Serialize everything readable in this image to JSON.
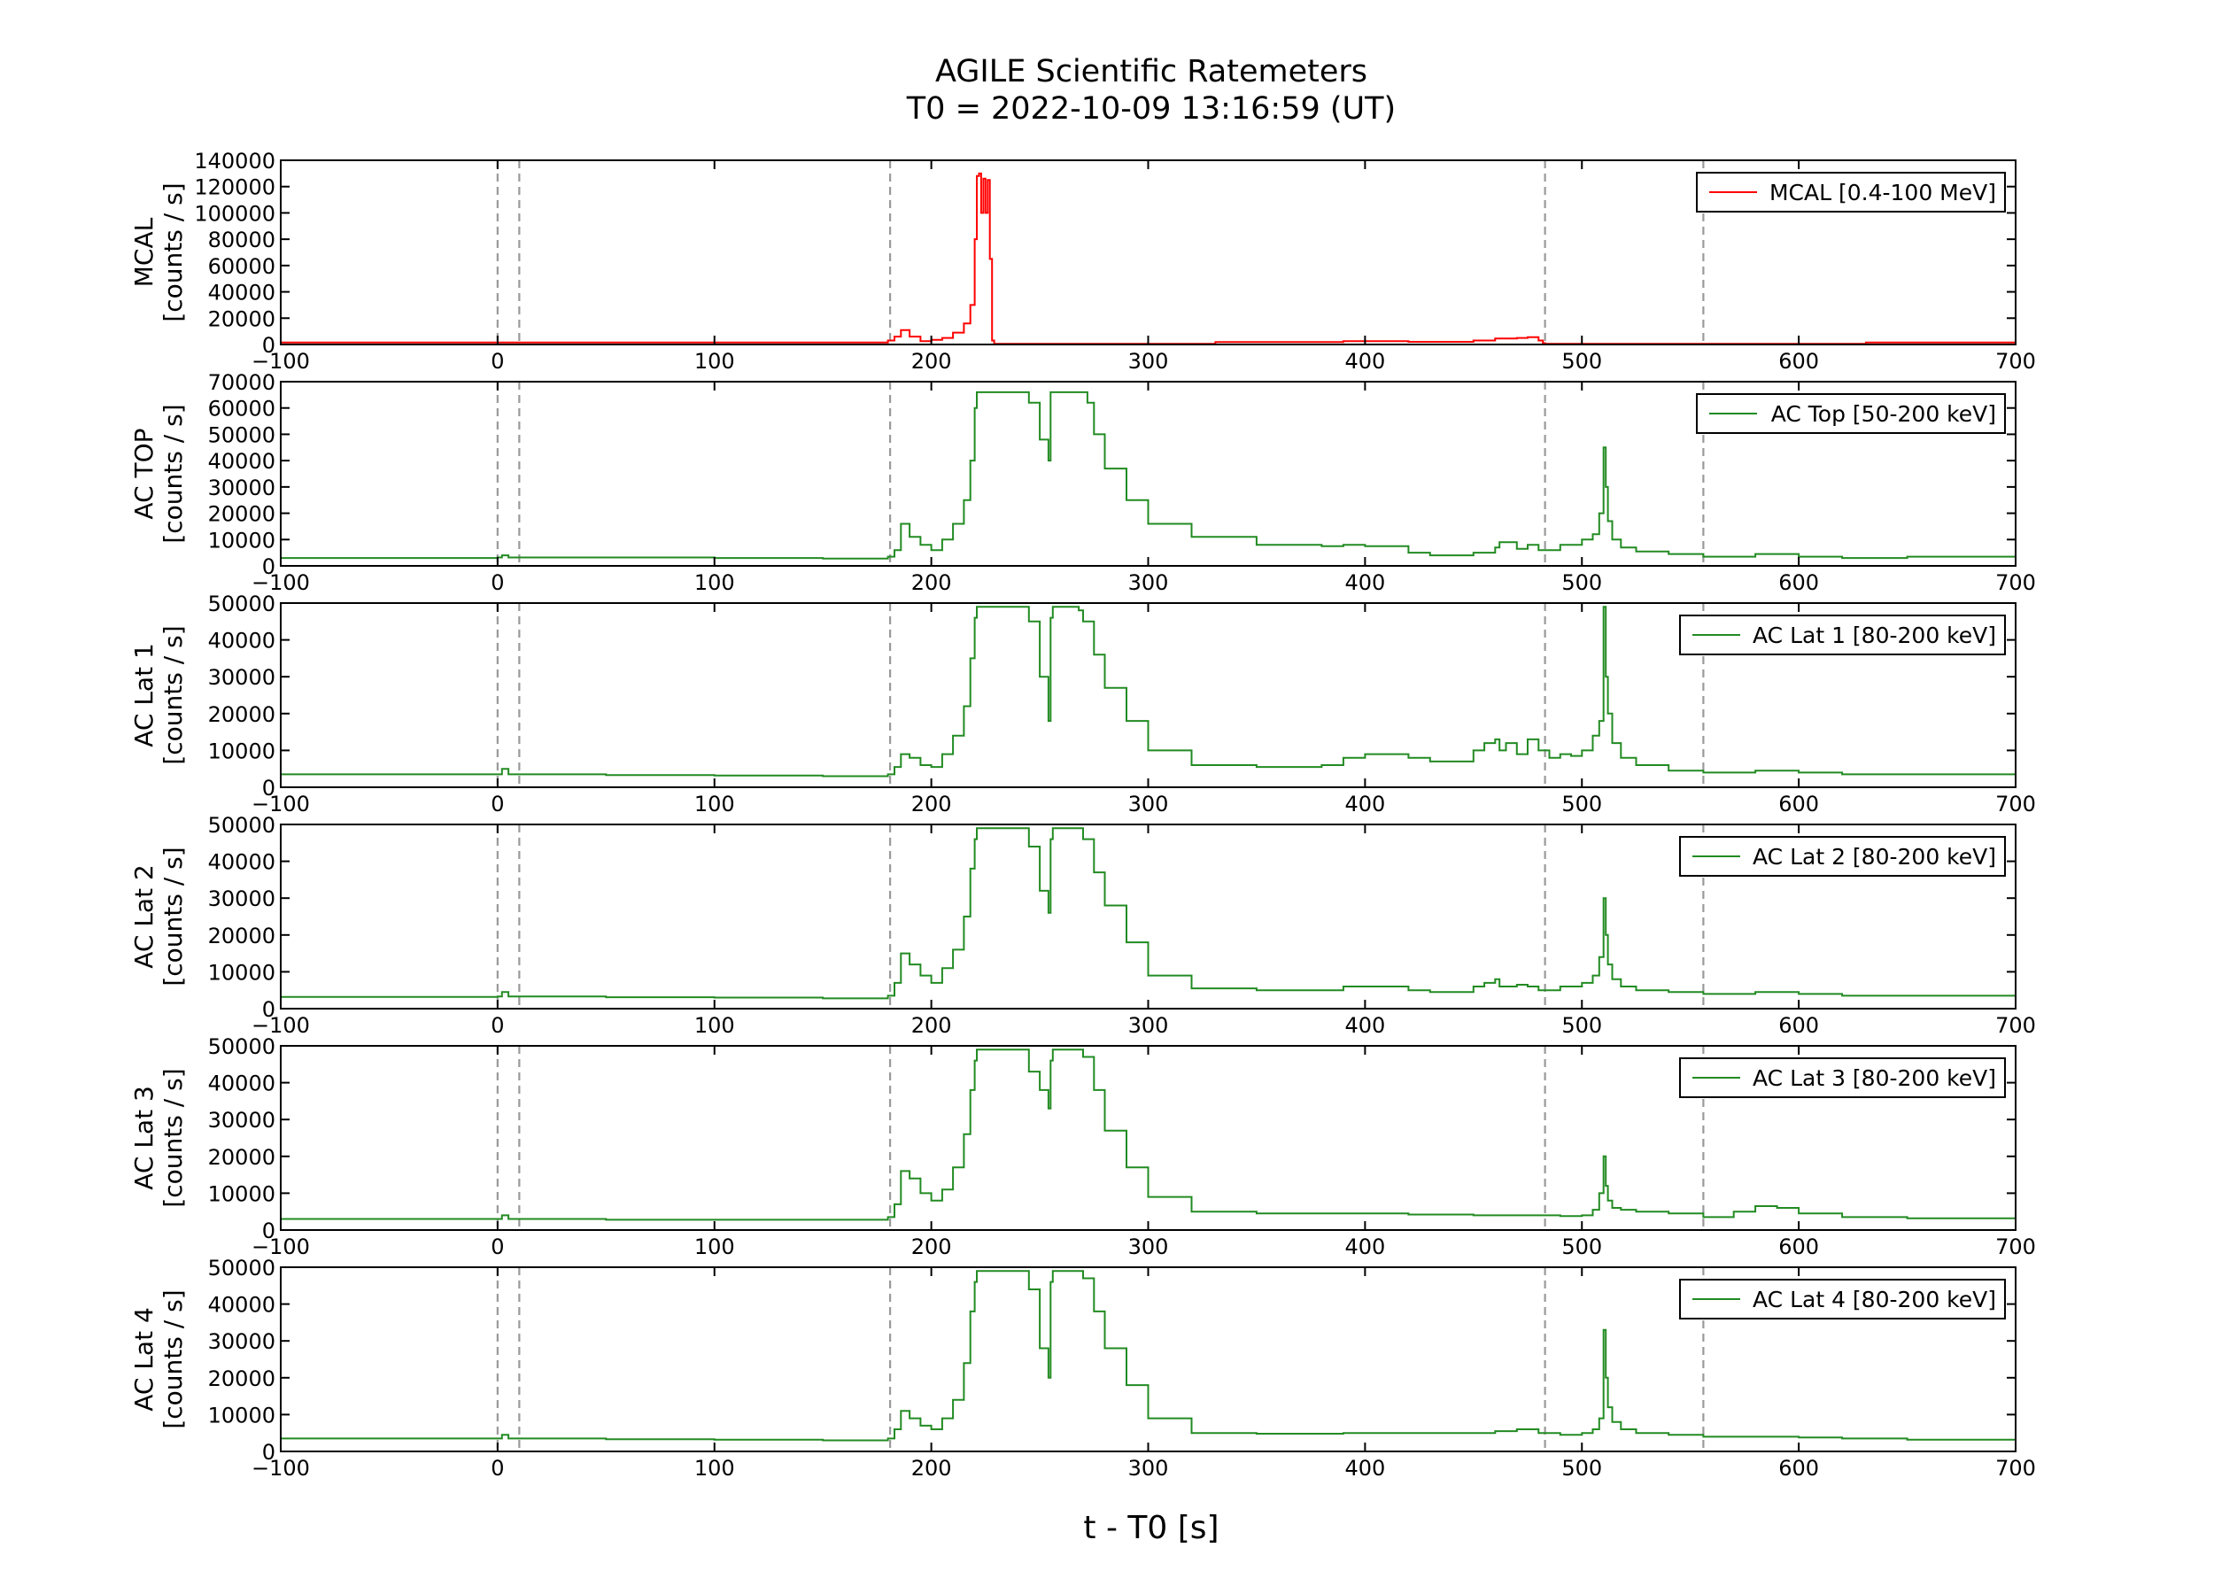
{
  "figure": {
    "title": "AGILE Scientific Ratemeters",
    "subtitle": "T0 = 2022-10-09 13:16:59 (UT)",
    "xlabel": "t - T0 [s]"
  },
  "chart_data": [
    {
      "type": "line",
      "ylabel": "MCAL\n[counts / s]",
      "legend": "MCAL [0.4-100 MeV]",
      "color": "#ff0000",
      "xlim": [
        -100,
        700
      ],
      "ylim": [
        0,
        140000
      ],
      "yticks": [
        0,
        20000,
        40000,
        60000,
        80000,
        100000,
        120000,
        140000
      ],
      "xticks": [
        -100,
        0,
        100,
        200,
        300,
        400,
        500,
        600,
        700
      ],
      "vlines": [
        0,
        10,
        181,
        483,
        556
      ],
      "series": [
        {
          "x": [
            -100,
            100,
            170,
            180,
            183,
            186,
            190,
            195,
            200,
            205,
            210,
            215,
            218,
            220,
            221,
            222,
            223,
            224,
            225,
            226,
            227,
            228,
            229,
            330,
            331,
            390,
            420,
            450,
            460,
            470,
            475,
            480,
            482,
            483,
            600,
            630,
            631,
            700
          ],
          "y": [
            1500,
            1500,
            1500,
            3000,
            6000,
            11000,
            6000,
            2500,
            3500,
            5000,
            9000,
            16000,
            30000,
            80000,
            128000,
            130000,
            100000,
            126000,
            100000,
            125000,
            65000,
            3000,
            500,
            500,
            1800,
            2500,
            2000,
            3000,
            4500,
            5000,
            5500,
            3000,
            1000,
            500,
            500,
            500,
            1500,
            1500
          ]
        }
      ]
    },
    {
      "type": "line",
      "ylabel": "AC TOP\n[counts / s]",
      "legend": "AC Top [50-200 keV]",
      "color": "#228b22",
      "xlim": [
        -100,
        700
      ],
      "ylim": [
        0,
        70000
      ],
      "yticks": [
        0,
        10000,
        20000,
        30000,
        40000,
        50000,
        60000,
        70000
      ],
      "xticks": [
        -100,
        0,
        100,
        200,
        300,
        400,
        500,
        600,
        700
      ],
      "vlines": [
        0,
        10,
        181,
        483,
        556
      ],
      "series": [
        {
          "x": [
            -100,
            -50,
            0,
            2,
            5,
            50,
            100,
            150,
            180,
            183,
            186,
            190,
            195,
            200,
            205,
            210,
            215,
            218,
            220,
            221,
            222,
            240,
            245,
            250,
            254,
            255,
            256,
            260,
            270,
            272,
            275,
            280,
            290,
            300,
            320,
            350,
            380,
            390,
            400,
            420,
            430,
            450,
            460,
            462,
            470,
            475,
            480,
            490,
            500,
            505,
            508,
            510,
            511,
            512,
            514,
            518,
            525,
            540,
            556,
            580,
            600,
            620,
            650,
            700
          ],
          "y": [
            3000,
            3000,
            3200,
            4000,
            3200,
            3200,
            3000,
            2800,
            3500,
            6000,
            16000,
            11000,
            8000,
            6000,
            10000,
            16000,
            25000,
            40000,
            60000,
            66000,
            66000,
            66000,
            62000,
            48000,
            40000,
            66000,
            66000,
            66000,
            66000,
            62000,
            50000,
            37000,
            25000,
            16000,
            11000,
            8000,
            7500,
            8000,
            7500,
            5000,
            4000,
            5000,
            7000,
            9000,
            6500,
            8000,
            6000,
            8000,
            10000,
            12000,
            20000,
            45000,
            30000,
            17000,
            10000,
            7000,
            5500,
            4500,
            3500,
            4500,
            3500,
            3000,
            3500,
            4000
          ]
        }
      ]
    },
    {
      "type": "line",
      "ylabel": "AC Lat 1\n[counts / s]",
      "legend": "AC Lat 1 [80-200 keV]",
      "color": "#228b22",
      "xlim": [
        -100,
        700
      ],
      "ylim": [
        0,
        50000
      ],
      "yticks": [
        0,
        10000,
        20000,
        30000,
        40000,
        50000
      ],
      "xticks": [
        -100,
        0,
        100,
        200,
        300,
        400,
        500,
        600,
        700
      ],
      "vlines": [
        0,
        10,
        181,
        483,
        556
      ],
      "series": [
        {
          "x": [
            -100,
            -50,
            0,
            2,
            5,
            50,
            100,
            150,
            180,
            183,
            186,
            190,
            195,
            200,
            205,
            210,
            215,
            218,
            220,
            221,
            222,
            240,
            245,
            250,
            254,
            255,
            256,
            260,
            265,
            268,
            270,
            275,
            280,
            290,
            300,
            320,
            350,
            380,
            390,
            400,
            420,
            430,
            450,
            455,
            460,
            462,
            465,
            470,
            475,
            480,
            485,
            490,
            495,
            500,
            505,
            508,
            510,
            511,
            512,
            514,
            518,
            525,
            540,
            556,
            580,
            600,
            620,
            650,
            700
          ],
          "y": [
            3500,
            3500,
            3500,
            5000,
            3500,
            3300,
            3200,
            3000,
            3500,
            5500,
            9000,
            8000,
            6000,
            5500,
            9000,
            14000,
            22000,
            35000,
            46000,
            49000,
            49000,
            49000,
            45000,
            30000,
            18000,
            46000,
            49000,
            49000,
            49000,
            48000,
            45000,
            36000,
            27000,
            18000,
            10000,
            6000,
            5500,
            6000,
            8000,
            9000,
            8000,
            7000,
            10000,
            12000,
            13000,
            10000,
            12000,
            9000,
            13000,
            10000,
            8000,
            9000,
            8500,
            10000,
            14000,
            18000,
            49000,
            30000,
            20000,
            12000,
            8000,
            6000,
            4500,
            4000,
            4500,
            4000,
            3500,
            3500,
            3200
          ]
        }
      ]
    },
    {
      "type": "line",
      "ylabel": "AC Lat 2\n[counts / s]",
      "legend": "AC Lat 2 [80-200 keV]",
      "color": "#228b22",
      "xlim": [
        -100,
        700
      ],
      "ylim": [
        0,
        50000
      ],
      "yticks": [
        0,
        10000,
        20000,
        30000,
        40000,
        50000
      ],
      "xticks": [
        -100,
        0,
        100,
        200,
        300,
        400,
        500,
        600,
        700
      ],
      "vlines": [
        0,
        10,
        181,
        483,
        556
      ],
      "series": [
        {
          "x": [
            -100,
            -50,
            0,
            2,
            5,
            50,
            100,
            150,
            180,
            183,
            186,
            190,
            195,
            200,
            205,
            210,
            215,
            218,
            220,
            221,
            222,
            240,
            245,
            250,
            254,
            255,
            256,
            260,
            268,
            270,
            275,
            280,
            290,
            300,
            320,
            350,
            380,
            390,
            400,
            420,
            430,
            450,
            455,
            460,
            462,
            470,
            475,
            480,
            490,
            500,
            505,
            508,
            510,
            511,
            512,
            514,
            518,
            525,
            540,
            556,
            580,
            600,
            620,
            650,
            700
          ],
          "y": [
            3200,
            3200,
            3300,
            4500,
            3300,
            3100,
            3000,
            2800,
            3500,
            7000,
            15000,
            12000,
            9000,
            7000,
            11000,
            16000,
            25000,
            38000,
            46000,
            49000,
            49000,
            49000,
            44000,
            32000,
            26000,
            46000,
            49000,
            49000,
            49000,
            46000,
            37000,
            28000,
            18000,
            9000,
            5500,
            5000,
            5000,
            6000,
            6000,
            5000,
            4500,
            6000,
            7000,
            8000,
            6000,
            6500,
            6000,
            5000,
            6000,
            7000,
            9000,
            14000,
            30000,
            20000,
            12000,
            8000,
            6000,
            5000,
            4500,
            4000,
            4500,
            4000,
            3500,
            3500,
            3200
          ]
        }
      ]
    },
    {
      "type": "line",
      "ylabel": "AC Lat 3\n[counts / s]",
      "legend": "AC Lat 3 [80-200 keV]",
      "color": "#228b22",
      "xlim": [
        -100,
        700
      ],
      "ylim": [
        0,
        50000
      ],
      "yticks": [
        0,
        10000,
        20000,
        30000,
        40000,
        50000
      ],
      "xticks": [
        -100,
        0,
        100,
        200,
        300,
        400,
        500,
        600,
        700
      ],
      "vlines": [
        0,
        10,
        181,
        483,
        556
      ],
      "series": [
        {
          "x": [
            -100,
            -50,
            0,
            2,
            5,
            50,
            100,
            150,
            180,
            183,
            186,
            190,
            195,
            200,
            205,
            210,
            215,
            218,
            220,
            221,
            222,
            240,
            245,
            250,
            254,
            255,
            256,
            260,
            268,
            270,
            275,
            280,
            290,
            300,
            320,
            350,
            380,
            390,
            400,
            420,
            450,
            480,
            490,
            500,
            505,
            508,
            510,
            511,
            512,
            514,
            518,
            525,
            540,
            556,
            570,
            580,
            590,
            600,
            620,
            650,
            700
          ],
          "y": [
            3000,
            3000,
            3000,
            4000,
            3000,
            2800,
            2800,
            2800,
            3500,
            7000,
            16000,
            14000,
            10000,
            8000,
            11000,
            17000,
            26000,
            38000,
            46000,
            49000,
            49000,
            49000,
            43000,
            38000,
            33000,
            46000,
            49000,
            49000,
            49000,
            47000,
            38000,
            27000,
            17000,
            9000,
            5000,
            4500,
            4500,
            4500,
            4500,
            4200,
            4000,
            4000,
            3800,
            4000,
            5500,
            10000,
            20000,
            12000,
            8000,
            6000,
            5500,
            5000,
            4500,
            3500,
            5000,
            6500,
            6000,
            4500,
            3500,
            3200,
            3000
          ]
        }
      ]
    },
    {
      "type": "line",
      "ylabel": "AC Lat 4\n[counts / s]",
      "legend": "AC Lat 4 [80-200 keV]",
      "color": "#228b22",
      "xlim": [
        -100,
        700
      ],
      "ylim": [
        0,
        50000
      ],
      "yticks": [
        0,
        10000,
        20000,
        30000,
        40000,
        50000
      ],
      "xticks": [
        -100,
        0,
        100,
        200,
        300,
        400,
        500,
        600,
        700
      ],
      "vlines": [
        0,
        10,
        181,
        483,
        556
      ],
      "series": [
        {
          "x": [
            -100,
            -50,
            0,
            2,
            5,
            50,
            100,
            150,
            180,
            183,
            186,
            190,
            195,
            200,
            205,
            210,
            215,
            218,
            220,
            221,
            222,
            240,
            245,
            250,
            254,
            255,
            256,
            260,
            268,
            270,
            275,
            280,
            290,
            300,
            320,
            350,
            380,
            390,
            400,
            420,
            450,
            460,
            470,
            480,
            490,
            500,
            505,
            508,
            510,
            511,
            512,
            514,
            518,
            525,
            540,
            556,
            580,
            600,
            620,
            650,
            700
          ],
          "y": [
            3500,
            3500,
            3500,
            4500,
            3500,
            3300,
            3200,
            3000,
            3500,
            6000,
            11000,
            9000,
            7000,
            6000,
            9000,
            14000,
            24000,
            38000,
            46000,
            49000,
            49000,
            49000,
            44000,
            28000,
            20000,
            46000,
            49000,
            49000,
            49000,
            47000,
            38000,
            28000,
            18000,
            9000,
            5000,
            4800,
            4800,
            5000,
            5000,
            5000,
            5000,
            5500,
            6000,
            5000,
            4500,
            5000,
            6000,
            9000,
            33000,
            20000,
            12000,
            8000,
            6000,
            5000,
            4500,
            4000,
            4000,
            3800,
            3500,
            3200,
            3000
          ]
        }
      ]
    }
  ]
}
